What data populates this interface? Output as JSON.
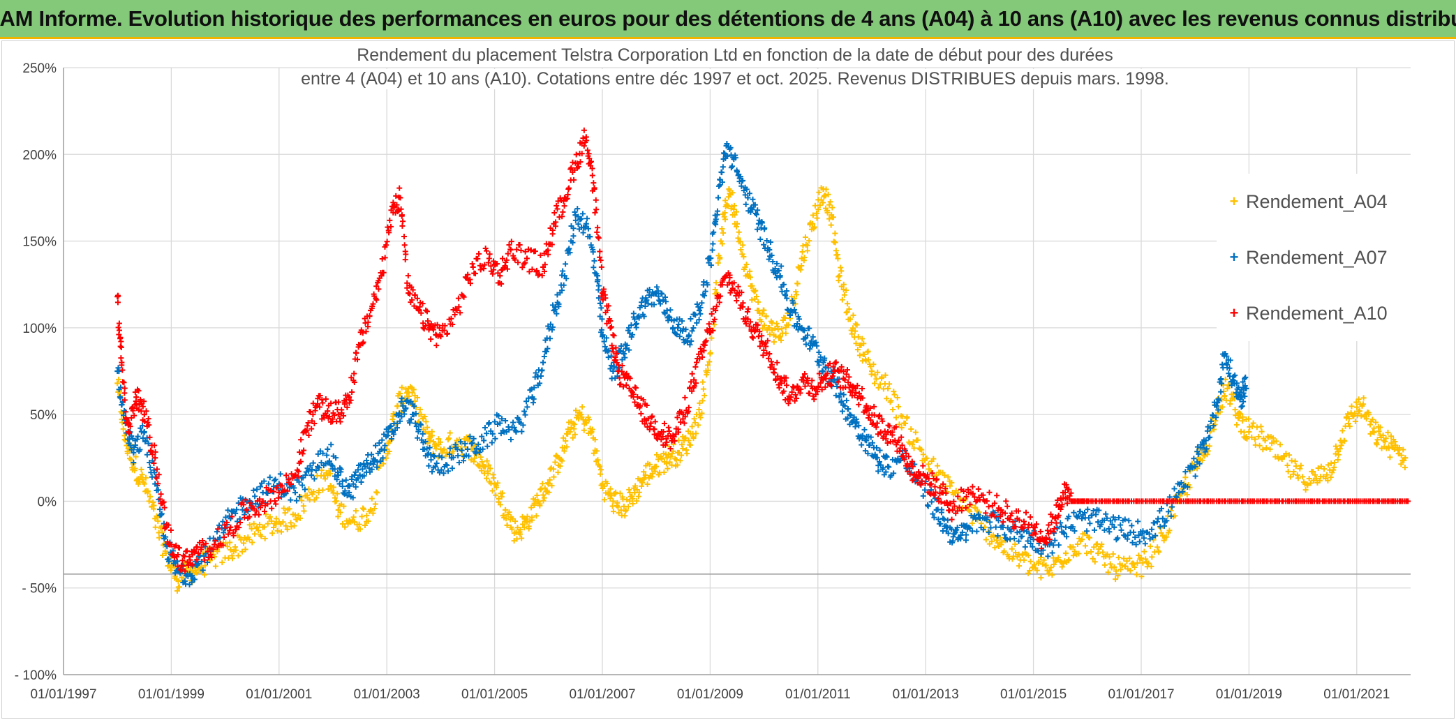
{
  "banner": {
    "title": "ADAM Informe. Evolution historique des performances en euros pour des détentions de 4 ans (A04) à 10 ans (A10) avec les revenus connus distribués"
  },
  "colors": {
    "banner_bg": "#84c97a",
    "accent": "#f0b400",
    "a04": "#ffc000",
    "a07": "#0070c0",
    "a10": "#ff0000",
    "grid": "#d9d9d9"
  },
  "chart_data": {
    "type": "scatter",
    "title_line1": "Rendement du placement Telstra Corporation Ltd en fonction de la date de début pour des durées",
    "title_line2": "entre 4 (A04) et 10 ans (A10). Cotations entre déc 1997 et oct. 2025. Revenus DISTRIBUES depuis mars. 1998.",
    "xlabel": "",
    "ylabel": "",
    "x_range": [
      1997.0,
      2022.0
    ],
    "ylim": [
      -100,
      250
    ],
    "y_ticks": [
      250,
      200,
      150,
      100,
      50,
      0,
      -50,
      -100
    ],
    "y_tick_labels": [
      "250%",
      "200%",
      "150%",
      "100%",
      "50%",
      "0%",
      "- 50%",
      "- 100%"
    ],
    "x_ticks": [
      1997,
      1999,
      2001,
      2003,
      2005,
      2007,
      2009,
      2011,
      2013,
      2015,
      2017,
      2019,
      2021
    ],
    "x_tick_labels": [
      "01/01/1997",
      "01/01/1999",
      "01/01/2001",
      "01/01/2003",
      "01/01/2005",
      "01/01/2007",
      "01/01/2009",
      "01/01/2011",
      "01/01/2013",
      "01/01/2015",
      "01/01/2017",
      "01/01/2019",
      "01/01/2021"
    ],
    "legend_position": "right",
    "series": [
      {
        "name": "Rendement_A04",
        "color": "#ffc000",
        "points": [
          [
            1998.0,
            68
          ],
          [
            1998.15,
            35
          ],
          [
            1998.3,
            22
          ],
          [
            1998.5,
            10
          ],
          [
            1998.7,
            -10
          ],
          [
            1998.9,
            -30
          ],
          [
            1999.1,
            -45
          ],
          [
            1999.3,
            -42
          ],
          [
            1999.5,
            -38
          ],
          [
            1999.8,
            -32
          ],
          [
            2000.1,
            -28
          ],
          [
            2000.4,
            -22
          ],
          [
            2000.7,
            -15
          ],
          [
            2001.0,
            -12
          ],
          [
            2001.3,
            -8
          ],
          [
            2001.6,
            5
          ],
          [
            2001.9,
            15
          ],
          [
            2002.1,
            -5
          ],
          [
            2002.4,
            -12
          ],
          [
            2002.7,
            -5
          ],
          [
            2003.0,
            30
          ],
          [
            2003.2,
            55
          ],
          [
            2003.4,
            65
          ],
          [
            2003.6,
            50
          ],
          [
            2003.8,
            35
          ],
          [
            2004.0,
            30
          ],
          [
            2004.3,
            35
          ],
          [
            2004.6,
            30
          ],
          [
            2004.8,
            20
          ],
          [
            2005.0,
            10
          ],
          [
            2005.2,
            -5
          ],
          [
            2005.4,
            -18
          ],
          [
            2005.6,
            -12
          ],
          [
            2005.8,
            0
          ],
          [
            2006.0,
            10
          ],
          [
            2006.2,
            25
          ],
          [
            2006.4,
            40
          ],
          [
            2006.6,
            50
          ],
          [
            2006.8,
            40
          ],
          [
            2007.0,
            10
          ],
          [
            2007.2,
            0
          ],
          [
            2007.4,
            -3
          ],
          [
            2007.6,
            5
          ],
          [
            2007.8,
            15
          ],
          [
            2008.0,
            20
          ],
          [
            2008.2,
            25
          ],
          [
            2008.4,
            28
          ],
          [
            2008.6,
            35
          ],
          [
            2008.8,
            50
          ],
          [
            2009.0,
            85
          ],
          [
            2009.2,
            150
          ],
          [
            2009.35,
            180
          ],
          [
            2009.5,
            160
          ],
          [
            2009.7,
            130
          ],
          [
            2009.9,
            110
          ],
          [
            2010.1,
            100
          ],
          [
            2010.3,
            95
          ],
          [
            2010.5,
            110
          ],
          [
            2010.7,
            140
          ],
          [
            2010.9,
            160
          ],
          [
            2011.1,
            180
          ],
          [
            2011.25,
            165
          ],
          [
            2011.4,
            130
          ],
          [
            2011.6,
            105
          ],
          [
            2011.8,
            90
          ],
          [
            2012.0,
            75
          ],
          [
            2012.3,
            65
          ],
          [
            2012.6,
            45
          ],
          [
            2012.9,
            30
          ],
          [
            2013.2,
            15
          ],
          [
            2013.5,
            5
          ],
          [
            2013.8,
            -5
          ],
          [
            2014.1,
            -15
          ],
          [
            2014.4,
            -25
          ],
          [
            2014.7,
            -32
          ],
          [
            2015.0,
            -38
          ],
          [
            2015.3,
            -40
          ],
          [
            2015.6,
            -30
          ],
          [
            2015.9,
            -22
          ],
          [
            2016.2,
            -30
          ],
          [
            2016.5,
            -38
          ],
          [
            2016.8,
            -40
          ],
          [
            2017.1,
            -35
          ],
          [
            2017.4,
            -20
          ],
          [
            2017.7,
            0
          ],
          [
            2018.0,
            20
          ],
          [
            2018.2,
            30
          ],
          [
            2018.4,
            55
          ],
          [
            2018.6,
            65
          ],
          [
            2018.8,
            48
          ],
          [
            2019.0,
            40
          ],
          [
            2019.3,
            35
          ],
          [
            2019.6,
            25
          ],
          [
            2019.9,
            15
          ],
          [
            2020.2,
            12
          ],
          [
            2020.5,
            18
          ],
          [
            2020.7,
            35
          ],
          [
            2020.9,
            50
          ],
          [
            2021.1,
            55
          ],
          [
            2021.3,
            40
          ],
          [
            2021.5,
            35
          ],
          [
            2021.7,
            30
          ],
          [
            2021.9,
            25
          ]
        ]
      },
      {
        "name": "Rendement_A07",
        "color": "#0070c0",
        "points": [
          [
            1998.0,
            75
          ],
          [
            1998.15,
            45
          ],
          [
            1998.3,
            28
          ],
          [
            1998.5,
            40
          ],
          [
            1998.7,
            10
          ],
          [
            1998.9,
            -25
          ],
          [
            1999.1,
            -40
          ],
          [
            1999.3,
            -42
          ],
          [
            1999.5,
            -36
          ],
          [
            1999.8,
            -25
          ],
          [
            2000.1,
            -10
          ],
          [
            2000.4,
            0
          ],
          [
            2000.7,
            5
          ],
          [
            2001.0,
            10
          ],
          [
            2001.3,
            5
          ],
          [
            2001.6,
            15
          ],
          [
            2001.9,
            30
          ],
          [
            2002.1,
            15
          ],
          [
            2002.3,
            5
          ],
          [
            2002.5,
            15
          ],
          [
            2002.7,
            22
          ],
          [
            2002.9,
            30
          ],
          [
            2003.1,
            40
          ],
          [
            2003.3,
            55
          ],
          [
            2003.5,
            50
          ],
          [
            2003.7,
            30
          ],
          [
            2003.9,
            20
          ],
          [
            2004.2,
            25
          ],
          [
            2004.5,
            30
          ],
          [
            2004.8,
            35
          ],
          [
            2005.1,
            45
          ],
          [
            2005.4,
            40
          ],
          [
            2005.7,
            60
          ],
          [
            2005.9,
            80
          ],
          [
            2006.1,
            110
          ],
          [
            2006.3,
            130
          ],
          [
            2006.5,
            165
          ],
          [
            2006.7,
            160
          ],
          [
            2006.9,
            130
          ],
          [
            2007.0,
            95
          ],
          [
            2007.2,
            75
          ],
          [
            2007.4,
            85
          ],
          [
            2007.6,
            105
          ],
          [
            2007.8,
            115
          ],
          [
            2008.0,
            120
          ],
          [
            2008.2,
            110
          ],
          [
            2008.4,
            100
          ],
          [
            2008.6,
            95
          ],
          [
            2008.8,
            110
          ],
          [
            2009.0,
            140
          ],
          [
            2009.15,
            175
          ],
          [
            2009.3,
            205
          ],
          [
            2009.5,
            190
          ],
          [
            2009.7,
            175
          ],
          [
            2009.9,
            160
          ],
          [
            2010.1,
            145
          ],
          [
            2010.3,
            130
          ],
          [
            2010.5,
            110
          ],
          [
            2010.7,
            100
          ],
          [
            2010.9,
            90
          ],
          [
            2011.1,
            80
          ],
          [
            2011.3,
            70
          ],
          [
            2011.5,
            55
          ],
          [
            2011.7,
            45
          ],
          [
            2011.9,
            35
          ],
          [
            2012.1,
            25
          ],
          [
            2012.3,
            20
          ],
          [
            2012.6,
            25
          ],
          [
            2012.9,
            10
          ],
          [
            2013.2,
            -5
          ],
          [
            2013.4,
            -15
          ],
          [
            2013.6,
            -22
          ],
          [
            2013.8,
            -15
          ],
          [
            2014.1,
            -10
          ],
          [
            2014.4,
            -15
          ],
          [
            2014.7,
            -18
          ],
          [
            2015.0,
            -22
          ],
          [
            2015.3,
            -25
          ],
          [
            2015.6,
            -15
          ],
          [
            2015.9,
            -10
          ],
          [
            2016.2,
            -12
          ],
          [
            2016.5,
            -15
          ],
          [
            2016.8,
            -18
          ],
          [
            2017.1,
            -18
          ],
          [
            2017.4,
            -10
          ],
          [
            2017.7,
            5
          ],
          [
            2018.0,
            20
          ],
          [
            2018.2,
            35
          ],
          [
            2018.4,
            55
          ],
          [
            2018.55,
            85
          ],
          [
            2018.7,
            70
          ],
          [
            2018.85,
            60
          ],
          [
            2018.95,
            65
          ]
        ]
      },
      {
        "name": "Rendement_A10",
        "color": "#ff0000",
        "points": [
          [
            1998.0,
            118
          ],
          [
            1998.08,
            80
          ],
          [
            1998.2,
            40
          ],
          [
            1998.35,
            60
          ],
          [
            1998.5,
            50
          ],
          [
            1998.7,
            25
          ],
          [
            1998.9,
            -15
          ],
          [
            1999.1,
            -32
          ],
          [
            1999.3,
            -35
          ],
          [
            1999.5,
            -30
          ],
          [
            1999.8,
            -25
          ],
          [
            2000.1,
            -15
          ],
          [
            2000.4,
            -5
          ],
          [
            2000.7,
            0
          ],
          [
            2001.0,
            5
          ],
          [
            2001.3,
            15
          ],
          [
            2001.5,
            40
          ],
          [
            2001.7,
            55
          ],
          [
            2001.9,
            52
          ],
          [
            2002.1,
            50
          ],
          [
            2002.3,
            60
          ],
          [
            2002.5,
            90
          ],
          [
            2002.7,
            110
          ],
          [
            2002.9,
            130
          ],
          [
            2003.1,
            170
          ],
          [
            2003.25,
            175
          ],
          [
            2003.4,
            120
          ],
          [
            2003.6,
            110
          ],
          [
            2003.8,
            100
          ],
          [
            2004.0,
            95
          ],
          [
            2004.3,
            110
          ],
          [
            2004.6,
            135
          ],
          [
            2004.9,
            140
          ],
          [
            2005.1,
            130
          ],
          [
            2005.3,
            145
          ],
          [
            2005.6,
            140
          ],
          [
            2005.9,
            135
          ],
          [
            2006.1,
            160
          ],
          [
            2006.3,
            175
          ],
          [
            2006.5,
            195
          ],
          [
            2006.7,
            210
          ],
          [
            2006.85,
            180
          ],
          [
            2007.0,
            120
          ],
          [
            2007.15,
            100
          ],
          [
            2007.3,
            75
          ],
          [
            2007.5,
            65
          ],
          [
            2007.7,
            55
          ],
          [
            2007.9,
            45
          ],
          [
            2008.1,
            40
          ],
          [
            2008.3,
            35
          ],
          [
            2008.5,
            50
          ],
          [
            2008.7,
            70
          ],
          [
            2008.9,
            90
          ],
          [
            2009.1,
            110
          ],
          [
            2009.3,
            130
          ],
          [
            2009.5,
            120
          ],
          [
            2009.7,
            105
          ],
          [
            2009.9,
            95
          ],
          [
            2010.1,
            85
          ],
          [
            2010.3,
            70
          ],
          [
            2010.5,
            60
          ],
          [
            2010.7,
            70
          ],
          [
            2010.9,
            65
          ],
          [
            2011.1,
            70
          ],
          [
            2011.3,
            75
          ],
          [
            2011.5,
            70
          ],
          [
            2011.7,
            65
          ],
          [
            2011.9,
            55
          ],
          [
            2012.1,
            45
          ],
          [
            2012.3,
            40
          ],
          [
            2012.5,
            35
          ],
          [
            2012.7,
            20
          ],
          [
            2012.9,
            15
          ],
          [
            2013.1,
            10
          ],
          [
            2013.3,
            5
          ],
          [
            2013.5,
            -5
          ],
          [
            2013.8,
            5
          ],
          [
            2014.1,
            0
          ],
          [
            2014.4,
            -5
          ],
          [
            2014.7,
            -10
          ],
          [
            2015.0,
            -15
          ],
          [
            2015.2,
            -22
          ],
          [
            2015.4,
            -10
          ],
          [
            2015.55,
            5
          ],
          [
            2015.7,
            0
          ],
          [
            2016.0,
            0
          ],
          [
            2016.5,
            0
          ],
          [
            2017.0,
            0
          ],
          [
            2017.5,
            0
          ],
          [
            2018.0,
            0
          ],
          [
            2018.5,
            0
          ],
          [
            2019.0,
            0
          ],
          [
            2019.5,
            0
          ],
          [
            2020.0,
            0
          ],
          [
            2020.5,
            0
          ],
          [
            2021.0,
            0
          ],
          [
            2021.5,
            0
          ],
          [
            2021.95,
            0
          ]
        ]
      }
    ]
  }
}
